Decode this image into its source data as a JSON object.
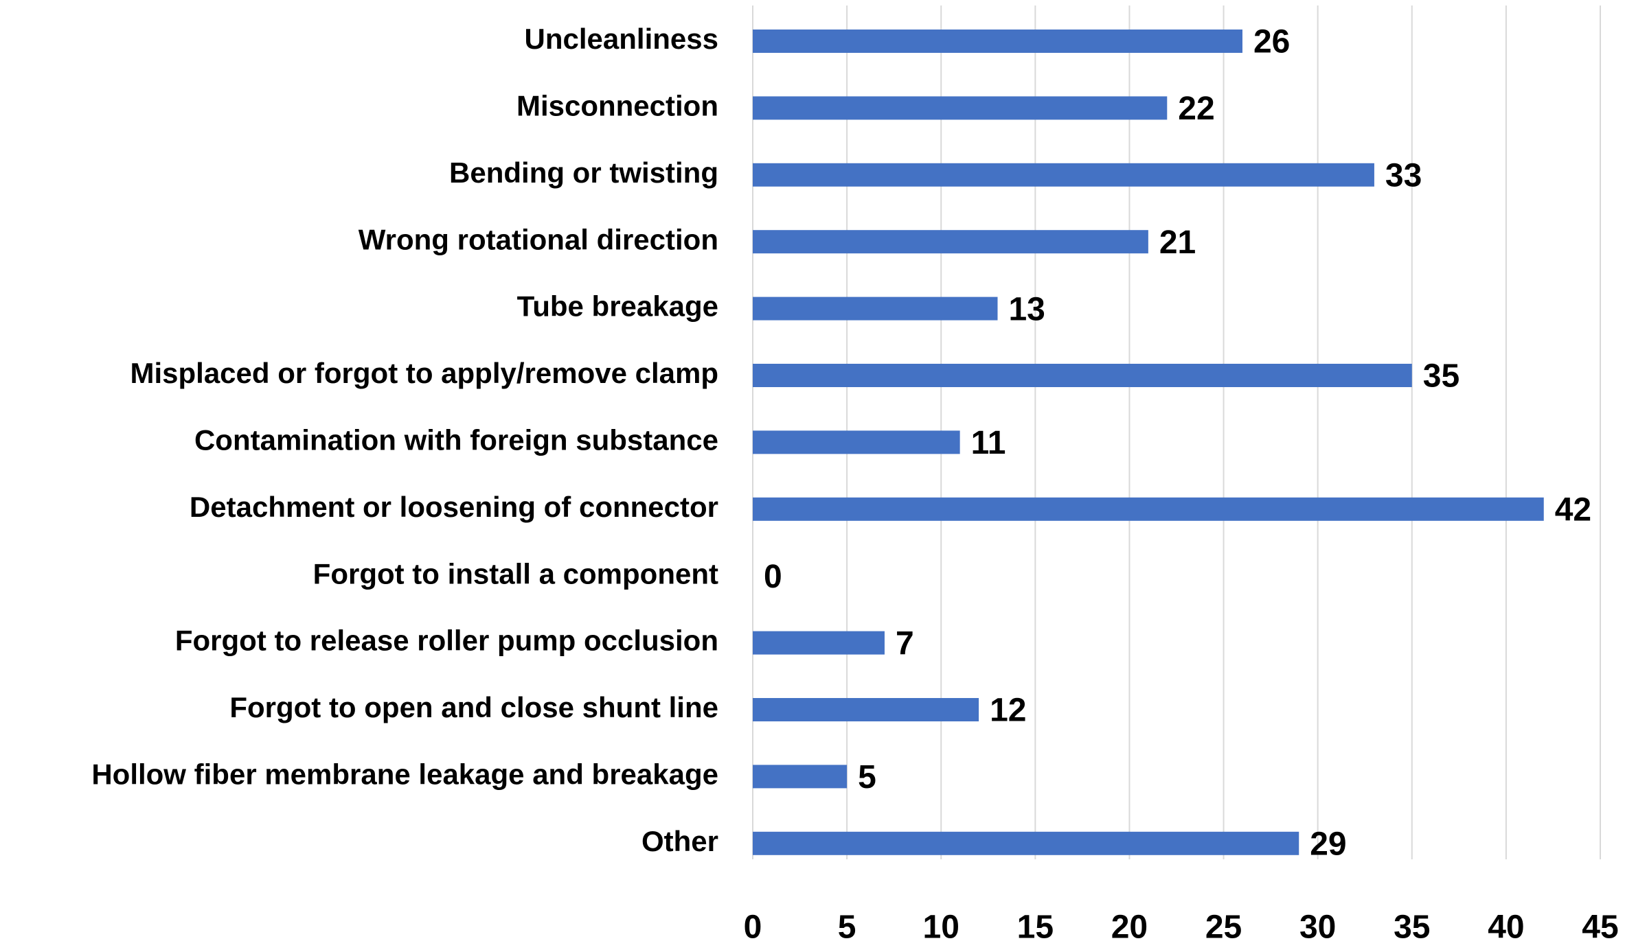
{
  "chart_data": {
    "type": "bar",
    "orientation": "horizontal",
    "categories": [
      "Uncleanliness",
      "Misconnection",
      "Bending or twisting",
      "Wrong rotational direction",
      "Tube breakage",
      "Misplaced or forgot to apply/remove clamp",
      "Contamination with foreign substance",
      "Detachment or loosening of connector",
      "Forgot to install a component",
      "Forgot to release roller pump occlusion",
      "Forgot to open and close shunt line",
      "Hollow fiber membrane leakage and breakage",
      "Other"
    ],
    "values": [
      26,
      22,
      33,
      21,
      13,
      35,
      11,
      42,
      0,
      7,
      12,
      5,
      29
    ],
    "color": "#4472c4",
    "xlim": [
      0,
      45
    ],
    "xticks": [
      0,
      5,
      10,
      15,
      20,
      25,
      30,
      35,
      40,
      45
    ],
    "grid": true
  }
}
